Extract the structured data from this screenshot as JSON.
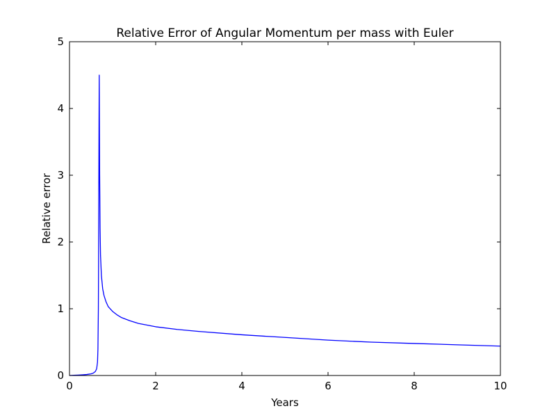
{
  "chart_data": {
    "type": "line",
    "title": "Relative Error of Angular Momentum per mass with Euler",
    "xlabel": "Years",
    "ylabel": "Relative error",
    "xlim": [
      0,
      10
    ],
    "ylim": [
      0,
      5
    ],
    "x_ticks": [
      0,
      2,
      4,
      6,
      8,
      10
    ],
    "y_ticks": [
      0,
      1,
      2,
      3,
      4,
      5
    ],
    "x_tick_labels": [
      "0",
      "2",
      "4",
      "6",
      "8",
      "10"
    ],
    "y_tick_labels": [
      "0",
      "1",
      "2",
      "3",
      "4",
      "5"
    ],
    "grid": false,
    "legend": "none",
    "series": [
      {
        "color": "#0000ff",
        "x": [
          0,
          0.1,
          0.2,
          0.3,
          0.4,
          0.5,
          0.55,
          0.6,
          0.63,
          0.65,
          0.66,
          0.67,
          0.675,
          0.68,
          0.685,
          0.69,
          0.7,
          0.71,
          0.72,
          0.74,
          0.77,
          0.8,
          0.85,
          0.9,
          1.0,
          1.1,
          1.2,
          1.4,
          1.6,
          2.0,
          2.5,
          3.0,
          4.0,
          5.0,
          6.0,
          7.0,
          8.0,
          9.0,
          10.0
        ],
        "y": [
          0,
          0.003,
          0.006,
          0.01,
          0.015,
          0.025,
          0.035,
          0.06,
          0.1,
          0.2,
          0.4,
          1.0,
          1.8,
          2.8,
          3.8,
          4.5,
          3.0,
          2.2,
          1.8,
          1.5,
          1.3,
          1.2,
          1.1,
          1.03,
          0.96,
          0.91,
          0.87,
          0.82,
          0.78,
          0.73,
          0.69,
          0.66,
          0.61,
          0.57,
          0.53,
          0.5,
          0.48,
          0.46,
          0.44
        ]
      }
    ]
  }
}
